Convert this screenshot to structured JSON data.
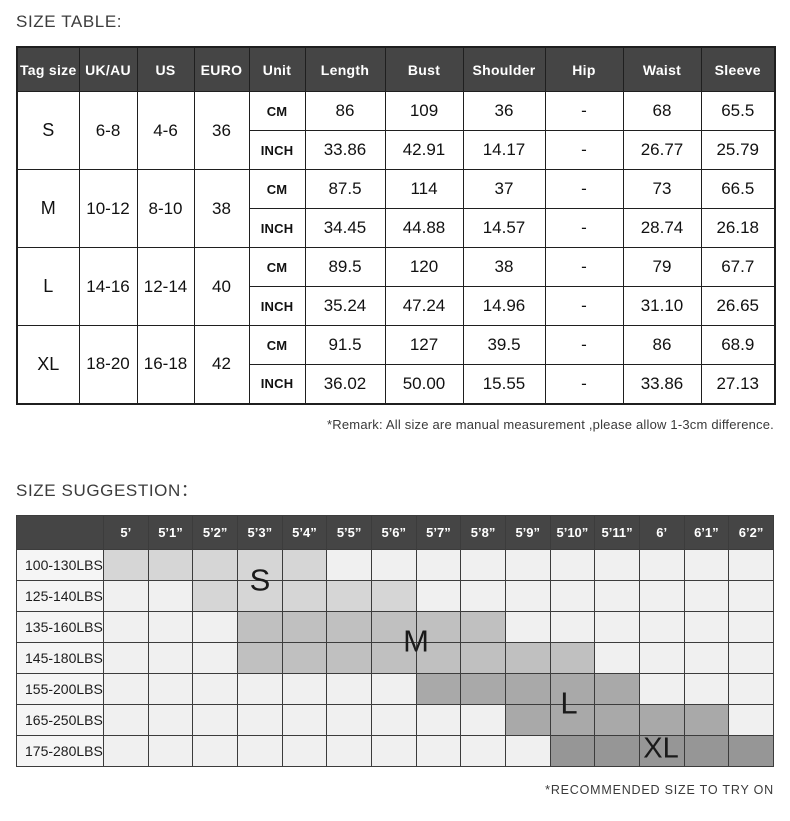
{
  "size_table": {
    "heading": "SIZE TABLE:",
    "headers": [
      "Tag size",
      "UK/AU",
      "US",
      "EURO",
      "Unit",
      "Length",
      "Bust",
      "Shoulder",
      "Hip",
      "Waist",
      "Sleeve"
    ],
    "unit_labels": [
      "CM",
      "INCH"
    ],
    "rows": [
      {
        "tag": "S",
        "uk_au": "6-8",
        "us": "4-6",
        "euro": "36",
        "cm": [
          "86",
          "109",
          "36",
          "-",
          "68",
          "65.5"
        ],
        "inch": [
          "33.86",
          "42.91",
          "14.17",
          "-",
          "26.77",
          "25.79"
        ]
      },
      {
        "tag": "M",
        "uk_au": "10-12",
        "us": "8-10",
        "euro": "38",
        "cm": [
          "87.5",
          "114",
          "37",
          "-",
          "73",
          "66.5"
        ],
        "inch": [
          "34.45",
          "44.88",
          "14.57",
          "-",
          "28.74",
          "26.18"
        ]
      },
      {
        "tag": "L",
        "uk_au": "14-16",
        "us": "12-14",
        "euro": "40",
        "cm": [
          "89.5",
          "120",
          "38",
          "-",
          "79",
          "67.7"
        ],
        "inch": [
          "35.24",
          "47.24",
          "14.96",
          "-",
          "31.10",
          "26.65"
        ]
      },
      {
        "tag": "XL",
        "uk_au": "18-20",
        "us": "16-18",
        "euro": "42",
        "cm": [
          "91.5",
          "127",
          "39.5",
          "-",
          "86",
          "68.9"
        ],
        "inch": [
          "36.02",
          "50.00",
          "15.55",
          "-",
          "33.86",
          "27.13"
        ]
      }
    ],
    "remark": "*Remark: All size are manual measurement ,please allow 1-3cm difference."
  },
  "size_suggestion": {
    "heading": "SIZE SUGGESTION：",
    "heights": [
      "5’",
      "5’1”",
      "5’2”",
      "5’3”",
      "5’4”",
      "5’5”",
      "5’6”",
      "5’7”",
      "5’8”",
      "5’9”",
      "5’10”",
      "5’11”",
      "6’",
      "6’1”",
      "6’2”"
    ],
    "rows": [
      {
        "weight": "100-130LBS",
        "cells": [
          "S",
          "S",
          "S",
          "S",
          "S",
          "",
          "",
          "",
          "",
          "",
          "",
          "",
          "",
          "",
          ""
        ]
      },
      {
        "weight": "125-140LBS",
        "cells": [
          "",
          "",
          "S",
          "S",
          "S",
          "S",
          "S",
          "",
          "",
          "",
          "",
          "",
          "",
          "",
          ""
        ]
      },
      {
        "weight": "135-160LBS",
        "cells": [
          "",
          "",
          "",
          "M",
          "M",
          "M",
          "M",
          "M",
          "M",
          "",
          "",
          "",
          "",
          "",
          ""
        ]
      },
      {
        "weight": "145-180LBS",
        "cells": [
          "",
          "",
          "",
          "M",
          "M",
          "M",
          "M",
          "M",
          "M",
          "M",
          "M",
          "",
          "",
          "",
          ""
        ]
      },
      {
        "weight": "155-200LBS",
        "cells": [
          "",
          "",
          "",
          "",
          "",
          "",
          "",
          "L",
          "L",
          "L",
          "L",
          "L",
          "",
          "",
          ""
        ]
      },
      {
        "weight": "165-250LBS",
        "cells": [
          "",
          "",
          "",
          "",
          "",
          "",
          "",
          "",
          "",
          "L",
          "L",
          "L",
          "L",
          "L",
          ""
        ]
      },
      {
        "weight": "175-280LBS",
        "cells": [
          "",
          "",
          "",
          "",
          "",
          "",
          "",
          "",
          "",
          "",
          "XL",
          "XL",
          "XL",
          "XL",
          "XL"
        ]
      }
    ],
    "region_colors": {
      "S": "#d6d6d6",
      "M": "#c0c0c0",
      "L": "#a9a9a9",
      "XL": "#969696"
    },
    "overlay_labels": {
      "s": "S",
      "m": "M",
      "l": "L",
      "xl": "XL"
    },
    "footnote": "*RECOMMENDED SIZE TO TRY ON"
  }
}
